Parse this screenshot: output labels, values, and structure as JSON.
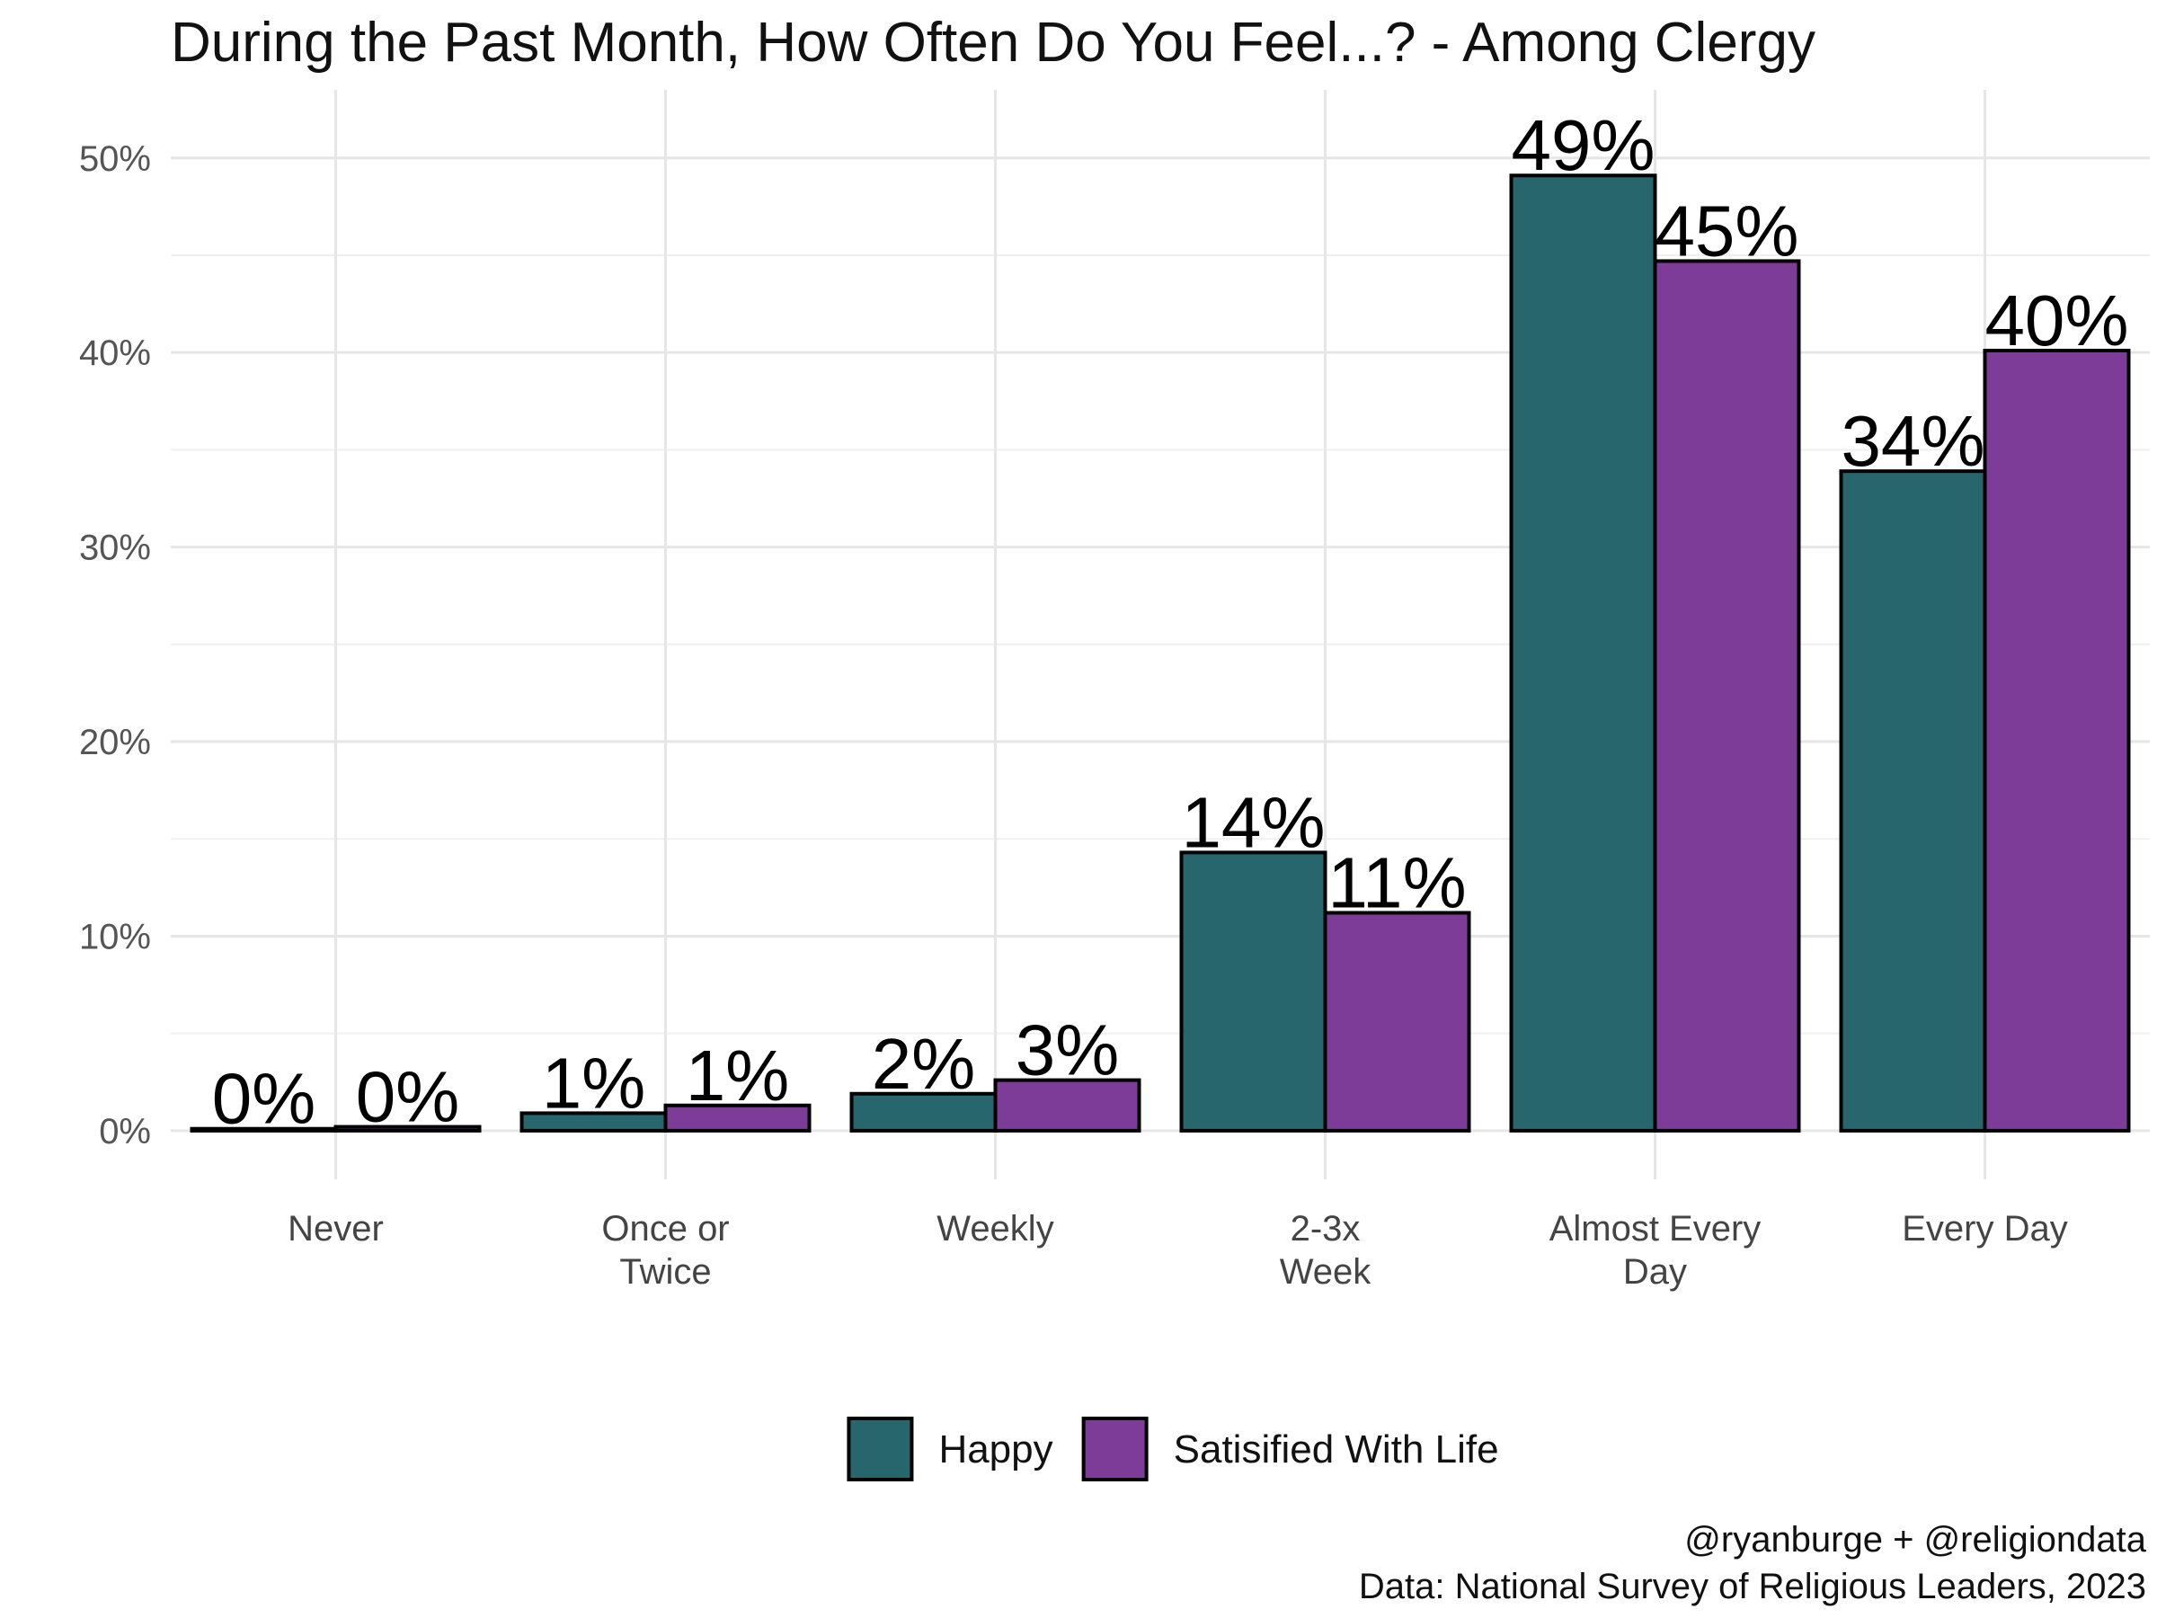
{
  "chart_data": {
    "type": "bar",
    "title": "During the Past Month, How Often Do You Feel...? - Among Clergy",
    "categories": [
      [
        "Never"
      ],
      [
        "Once or",
        "Twice"
      ],
      [
        "Weekly"
      ],
      [
        "2-3x",
        "Week"
      ],
      [
        "Almost Every",
        "Day"
      ],
      [
        "Every Day"
      ]
    ],
    "series": [
      {
        "name": "Happy",
        "color": "#28666E",
        "values": [
          0.1,
          0.9,
          1.9,
          14.3,
          49.1,
          33.9
        ],
        "labels": [
          "0%",
          "1%",
          "2%",
          "14%",
          "49%",
          "34%"
        ]
      },
      {
        "name": "Satisified With Life",
        "color": "#7D3C98",
        "values": [
          0.2,
          1.3,
          2.6,
          11.2,
          44.7,
          40.1
        ],
        "labels": [
          "0%",
          "1%",
          "3%",
          "11%",
          "45%",
          "40%"
        ]
      }
    ],
    "ylim": [
      -2.5,
      53.5
    ],
    "yticks": [
      0,
      10,
      20,
      30,
      40,
      50
    ],
    "ytick_labels": [
      "0%",
      "10%",
      "20%",
      "30%",
      "40%",
      "50%"
    ],
    "xlabel": "",
    "ylabel": "",
    "grid": true,
    "legend_position": "bottom"
  },
  "caption": {
    "line1": "@ryanburge + @religiondata",
    "line2": "Data: National Survey of Religious Leaders, 2023"
  }
}
